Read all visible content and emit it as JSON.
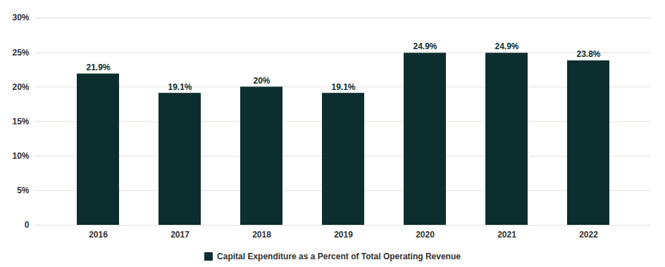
{
  "chart_data": {
    "type": "bar",
    "categories": [
      "2016",
      "2017",
      "2018",
      "2019",
      "2020",
      "2021",
      "2022"
    ],
    "series": [
      {
        "name": "Capital Expenditure as a Percent of Total Operating Revenue",
        "color": "#0d2e2e",
        "values": [
          21.9,
          19.1,
          20.0,
          19.1,
          24.9,
          24.9,
          23.8
        ],
        "value_labels": [
          "21.9%",
          "19.1%",
          "20%",
          "19.1%",
          "24.9%",
          "24.9%",
          "23.8%"
        ]
      }
    ],
    "data_labels": true,
    "ylim": [
      0,
      30
    ],
    "yticks": [
      0,
      {
        "value": 5,
        "label": "5%"
      },
      {
        "value": 10,
        "label": "10%"
      },
      {
        "value": 15,
        "label": "15%"
      },
      {
        "value": 20,
        "label": "20%"
      },
      {
        "value": 25,
        "label": "25%"
      },
      {
        "value": 30,
        "label": "30%"
      }
    ],
    "grid": true,
    "legend": "bottom"
  }
}
